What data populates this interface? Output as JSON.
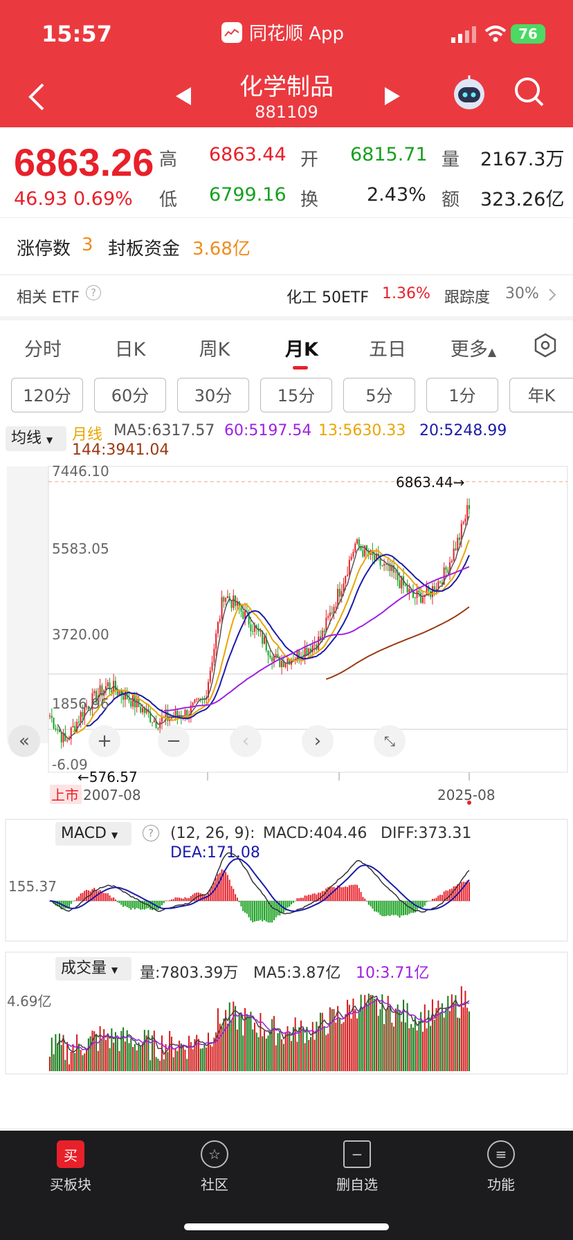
{
  "status": {
    "time": "15:57",
    "app_name": "同花顺 App",
    "battery": "76"
  },
  "header": {
    "title": "化学制品",
    "code": "881109"
  },
  "quote": {
    "price": "6863.26",
    "change": "46.93",
    "change_pct": "0.69%",
    "high_label": "高",
    "high": "6863.44",
    "open_label": "开",
    "open": "6815.71",
    "vol_label": "量",
    "vol": "2167.3万",
    "low_label": "低",
    "low": "6799.16",
    "turn_label": "换",
    "turn": "2.43%",
    "amt_label": "额",
    "amt": "323.26亿"
  },
  "limit": {
    "count_label": "涨停数",
    "count": "3",
    "fund_label": "封板资金",
    "fund": "3.68亿"
  },
  "etf": {
    "label": "相关 ETF",
    "name": "化工 50ETF",
    "pct": "1.36%",
    "track_label": "跟踪度",
    "track": "30%"
  },
  "tabs": [
    "分时",
    "日K",
    "周K",
    "月K",
    "五日",
    "更多"
  ],
  "periods": [
    "120分",
    "60分",
    "30分",
    "15分",
    "5分",
    "1分",
    "年K"
  ],
  "ma_line": {
    "selector": "均线",
    "name": "月线",
    "ma5": "MA5:6317.57",
    "ma60": "60:5197.54",
    "ma13": "13:5630.33",
    "ma20": "20:5248.99",
    "ma144": "144:3941.04"
  },
  "kline": {
    "y_labels": [
      "7446.10",
      "5583.05",
      "3720.00",
      "1856.96",
      "-6.09"
    ],
    "max_marker": "6863.44→",
    "min_marker": "←576.57",
    "start_tag": "上市",
    "start_date": "2007-08",
    "end_date": "2025-08"
  },
  "macd": {
    "selector": "MACD",
    "params": "(12, 26, 9):",
    "macd": "MACD:404.46",
    "diff": "DIFF:373.31",
    "dea": "DEA:171.08",
    "axis": "155.37"
  },
  "volume": {
    "selector": "成交量",
    "vol": "量:7803.39万",
    "ma5": "MA5:3.87亿",
    "ma10": "10:3.71亿",
    "axis": "4.69亿"
  },
  "toolbar": [
    "买板块",
    "社区",
    "删自选",
    "功能"
  ],
  "colors": {
    "up": "#e8202a",
    "down": "#17a01f",
    "brand": "#ea3a40"
  }
}
